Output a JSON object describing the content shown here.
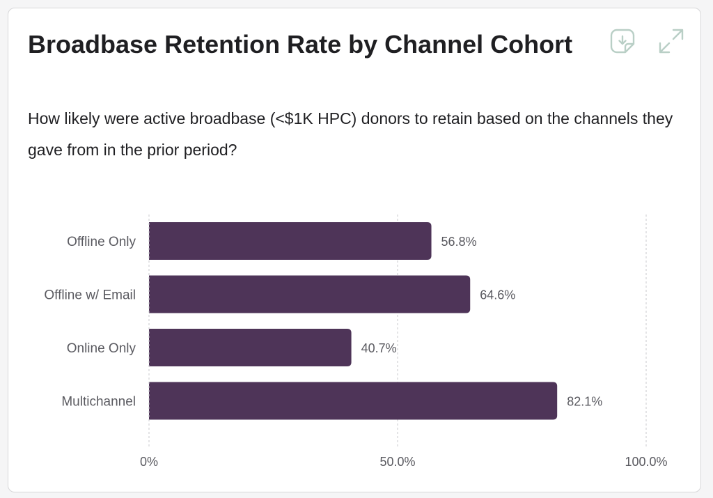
{
  "card": {
    "title": "Broadbase Retention Rate by Channel Cohort",
    "subtitle": "How likely were active broadbase (<$1K HPC) donors to retain based on the channels they gave from in the prior period?"
  },
  "toolbar": {
    "download_icon": "download-icon",
    "expand_icon": "expand-icon"
  },
  "colors": {
    "bar": "#4e3458",
    "grid": "#c8c8cc",
    "text": "#5a5a60",
    "icon": "#b9cfc6"
  },
  "chart_data": {
    "type": "bar",
    "orientation": "horizontal",
    "title": "Broadbase Retention Rate by Channel Cohort",
    "categories": [
      "Offline Only",
      "Offline w/ Email",
      "Online Only",
      "Multichannel"
    ],
    "values": [
      56.8,
      64.6,
      40.7,
      82.1
    ],
    "value_labels": [
      "56.8%",
      "64.6%",
      "40.7%",
      "82.1%"
    ],
    "xlim": [
      0,
      100
    ],
    "xticks": [
      0,
      50,
      100
    ],
    "xtick_labels": [
      "0%",
      "50.0%",
      "100.0%"
    ],
    "xlabel": "",
    "ylabel": "",
    "grid": true,
    "legend": "none"
  }
}
